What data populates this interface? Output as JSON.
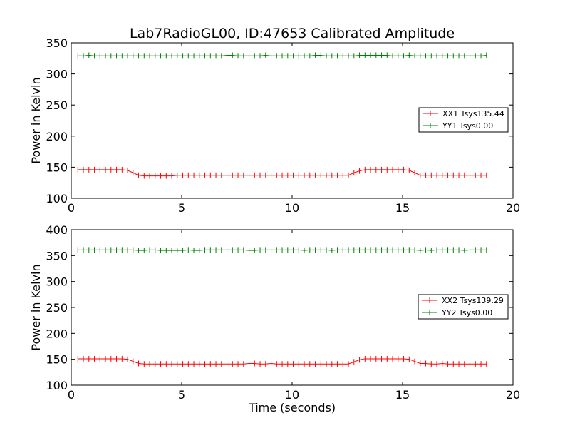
{
  "chart_data": [
    {
      "type": "line",
      "title": "Lab7RadioGL00, ID:47653 Calibrated Amplitude",
      "xlabel": "",
      "ylabel": "Power in Kelvin",
      "xlim": [
        0,
        20
      ],
      "ylim": [
        100,
        350
      ],
      "xticks": [
        0,
        5,
        10,
        15,
        20
      ],
      "yticks": [
        100,
        150,
        200,
        250,
        300,
        350
      ],
      "grid": false,
      "legend_position": "right",
      "series": [
        {
          "name": "XX1 Tsys135.44",
          "color": "#ff0000",
          "marker": "+",
          "x": [
            0.3,
            0.55,
            0.8,
            1.05,
            1.3,
            1.55,
            1.8,
            2.05,
            2.3,
            2.55,
            2.8,
            3.05,
            3.3,
            3.55,
            3.8,
            4.05,
            4.3,
            4.55,
            4.8,
            5.05,
            5.3,
            5.55,
            5.8,
            6.05,
            6.3,
            6.55,
            6.8,
            7.05,
            7.3,
            7.55,
            7.8,
            8.05,
            8.3,
            8.55,
            8.8,
            9.05,
            9.3,
            9.55,
            9.8,
            10.05,
            10.3,
            10.55,
            10.8,
            11.05,
            11.3,
            11.55,
            11.8,
            12.05,
            12.3,
            12.55,
            12.8,
            13.05,
            13.3,
            13.55,
            13.8,
            14.05,
            14.3,
            14.55,
            14.8,
            15.05,
            15.3,
            15.55,
            15.8,
            16.05,
            16.3,
            16.55,
            16.8,
            17.05,
            17.3,
            17.55,
            17.8,
            18.05,
            18.3,
            18.55,
            18.8
          ],
          "values": [
            146,
            146,
            146,
            146,
            146,
            146,
            146,
            146,
            146,
            145,
            141,
            137,
            136,
            136,
            136,
            136,
            136,
            136,
            137,
            137,
            137,
            137,
            137,
            137,
            137,
            137,
            137,
            137,
            137,
            137,
            137,
            137,
            137,
            137,
            137,
            137,
            137,
            137,
            137,
            137,
            137,
            137,
            137,
            137,
            137,
            137,
            137,
            137,
            137,
            137,
            141,
            144,
            146,
            146,
            146,
            146,
            146,
            146,
            146,
            146,
            145,
            141,
            137,
            137,
            137,
            137,
            137,
            137,
            137,
            137,
            137,
            137,
            137,
            137,
            137
          ]
        },
        {
          "name": "YY1 Tsys0.00",
          "color": "#008000",
          "marker": "+",
          "x": [
            0.3,
            0.55,
            0.8,
            1.05,
            1.3,
            1.55,
            1.8,
            2.05,
            2.3,
            2.55,
            2.8,
            3.05,
            3.3,
            3.55,
            3.8,
            4.05,
            4.3,
            4.55,
            4.8,
            5.05,
            5.3,
            5.55,
            5.8,
            6.05,
            6.3,
            6.55,
            6.8,
            7.05,
            7.3,
            7.55,
            7.8,
            8.05,
            8.3,
            8.55,
            8.8,
            9.05,
            9.3,
            9.55,
            9.8,
            10.05,
            10.3,
            10.55,
            10.8,
            11.05,
            11.3,
            11.55,
            11.8,
            12.05,
            12.3,
            12.55,
            12.8,
            13.05,
            13.3,
            13.55,
            13.8,
            14.05,
            14.3,
            14.55,
            14.8,
            15.05,
            15.3,
            15.55,
            15.8,
            16.05,
            16.3,
            16.55,
            16.8,
            17.05,
            17.3,
            17.55,
            17.8,
            18.05,
            18.3,
            18.55,
            18.8
          ],
          "values": [
            329,
            329,
            330,
            329,
            329,
            329,
            329,
            329,
            329,
            329,
            329,
            329,
            329,
            329,
            329,
            329,
            329,
            329,
            329,
            329,
            329,
            329,
            329,
            329,
            329,
            329,
            329,
            330,
            330,
            329,
            329,
            329,
            329,
            329,
            330,
            329,
            329,
            329,
            329,
            329,
            329,
            329,
            329,
            330,
            330,
            329,
            329,
            329,
            329,
            329,
            329,
            330,
            330,
            330,
            330,
            330,
            330,
            329,
            329,
            329,
            330,
            329,
            329,
            329,
            329,
            329,
            329,
            329,
            329,
            329,
            329,
            329,
            329,
            329,
            330
          ]
        }
      ]
    },
    {
      "type": "line",
      "title": "",
      "xlabel": "Time (seconds)",
      "ylabel": "Power in Kelvin",
      "xlim": [
        0,
        20
      ],
      "ylim": [
        100,
        400
      ],
      "xticks": [
        0,
        5,
        10,
        15,
        20
      ],
      "yticks": [
        100,
        150,
        200,
        250,
        300,
        350,
        400
      ],
      "grid": false,
      "legend_position": "right",
      "series": [
        {
          "name": "XX2 Tsys139.29",
          "color": "#ff0000",
          "marker": "+",
          "x": [
            0.3,
            0.55,
            0.8,
            1.05,
            1.3,
            1.55,
            1.8,
            2.05,
            2.3,
            2.55,
            2.8,
            3.05,
            3.3,
            3.55,
            3.8,
            4.05,
            4.3,
            4.55,
            4.8,
            5.05,
            5.3,
            5.55,
            5.8,
            6.05,
            6.3,
            6.55,
            6.8,
            7.05,
            7.3,
            7.55,
            7.8,
            8.05,
            8.3,
            8.55,
            8.8,
            9.05,
            9.3,
            9.55,
            9.8,
            10.05,
            10.3,
            10.55,
            10.8,
            11.05,
            11.3,
            11.55,
            11.8,
            12.05,
            12.3,
            12.55,
            12.8,
            13.05,
            13.3,
            13.55,
            13.8,
            14.05,
            14.3,
            14.55,
            14.8,
            15.05,
            15.3,
            15.55,
            15.8,
            16.05,
            16.3,
            16.55,
            16.8,
            17.05,
            17.3,
            17.55,
            17.8,
            18.05,
            18.3,
            18.55,
            18.8
          ],
          "values": [
            151,
            151,
            151,
            151,
            151,
            151,
            151,
            151,
            151,
            150,
            146,
            142,
            141,
            141,
            141,
            141,
            141,
            141,
            141,
            141,
            141,
            141,
            141,
            141,
            141,
            141,
            141,
            141,
            141,
            141,
            141,
            142,
            142,
            141,
            141,
            142,
            141,
            141,
            141,
            141,
            141,
            141,
            141,
            141,
            141,
            141,
            141,
            141,
            141,
            141,
            145,
            149,
            151,
            151,
            151,
            151,
            151,
            151,
            151,
            151,
            150,
            146,
            142,
            142,
            141,
            141,
            142,
            141,
            141,
            141,
            141,
            141,
            141,
            141,
            141
          ]
        },
        {
          "name": "YY2 Tsys0.00",
          "color": "#008000",
          "marker": "+",
          "x": [
            0.3,
            0.55,
            0.8,
            1.05,
            1.3,
            1.55,
            1.8,
            2.05,
            2.3,
            2.55,
            2.8,
            3.05,
            3.3,
            3.55,
            3.8,
            4.05,
            4.3,
            4.55,
            4.8,
            5.05,
            5.3,
            5.55,
            5.8,
            6.05,
            6.3,
            6.55,
            6.8,
            7.05,
            7.3,
            7.55,
            7.8,
            8.05,
            8.3,
            8.55,
            8.8,
            9.05,
            9.3,
            9.55,
            9.8,
            10.05,
            10.3,
            10.55,
            10.8,
            11.05,
            11.3,
            11.55,
            11.8,
            12.05,
            12.3,
            12.55,
            12.8,
            13.05,
            13.3,
            13.55,
            13.8,
            14.05,
            14.3,
            14.55,
            14.8,
            15.05,
            15.3,
            15.55,
            15.8,
            16.05,
            16.3,
            16.55,
            16.8,
            17.05,
            17.3,
            17.55,
            17.8,
            18.05,
            18.3,
            18.55,
            18.8
          ],
          "values": [
            361,
            361,
            361,
            361,
            361,
            361,
            361,
            361,
            361,
            361,
            361,
            360,
            360,
            361,
            361,
            360,
            360,
            360,
            360,
            360,
            361,
            360,
            360,
            361,
            361,
            361,
            361,
            361,
            361,
            361,
            361,
            360,
            360,
            361,
            361,
            361,
            361,
            361,
            361,
            361,
            361,
            360,
            361,
            361,
            361,
            361,
            360,
            361,
            361,
            361,
            361,
            361,
            361,
            361,
            361,
            361,
            361,
            361,
            361,
            361,
            361,
            361,
            360,
            361,
            360,
            361,
            361,
            361,
            361,
            361,
            360,
            361,
            361,
            361,
            361
          ]
        }
      ]
    }
  ]
}
